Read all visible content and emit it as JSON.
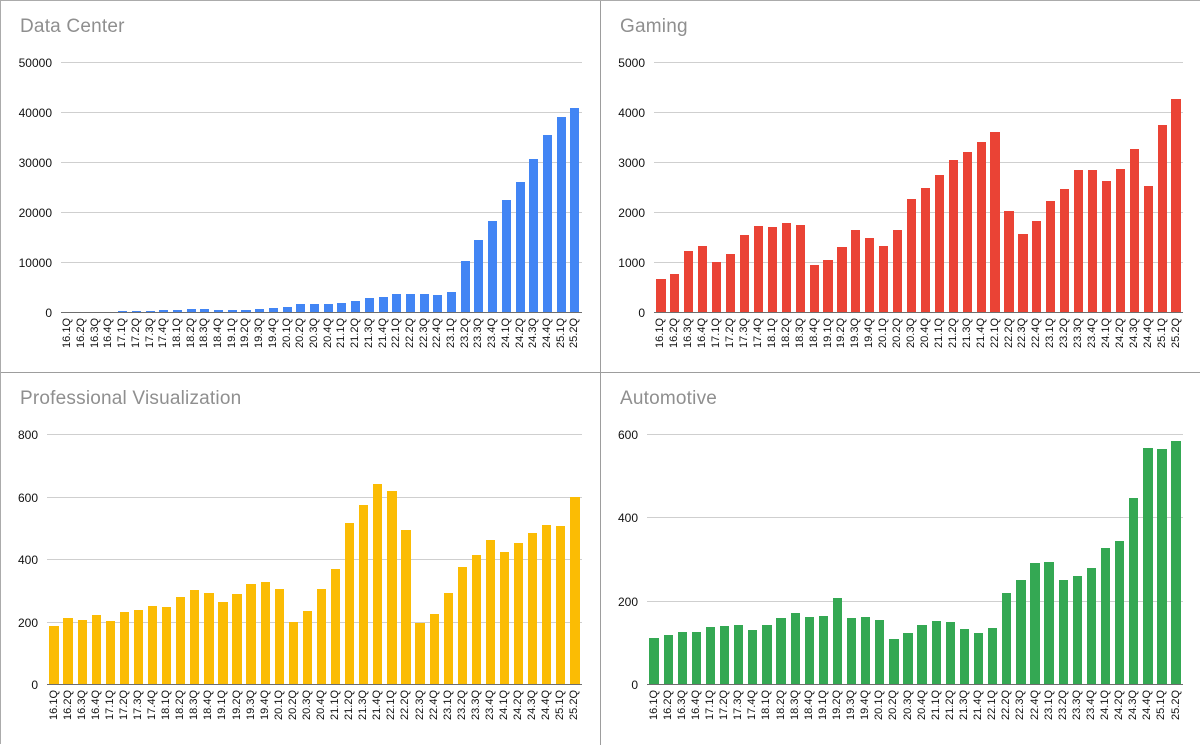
{
  "categories": [
    "16.1Q",
    "16.2Q",
    "16.3Q",
    "16.4Q",
    "17.1Q",
    "17.2Q",
    "17.3Q",
    "17.4Q",
    "18.1Q",
    "18.2Q",
    "18.3Q",
    "18.4Q",
    "19.1Q",
    "19.2Q",
    "19.3Q",
    "19.4Q",
    "20.1Q",
    "20.2Q",
    "20.3Q",
    "20.4Q",
    "21.1Q",
    "21.2Q",
    "21.3Q",
    "21.4Q",
    "22.1Q",
    "22.2Q",
    "22.3Q",
    "22.4Q",
    "23.1Q",
    "23.2Q",
    "23.3Q",
    "23.4Q",
    "24.1Q",
    "24.2Q",
    "24.3Q",
    "24.4Q",
    "25.1Q",
    "25.2Q"
  ],
  "chart_data": [
    {
      "type": "bar",
      "title": "Data Center",
      "color": "#4285f4",
      "ylim": [
        0,
        50000
      ],
      "yticks": [
        "0",
        "10000",
        "20000",
        "30000",
        "40000",
        "50000"
      ],
      "grid": true,
      "legend": "none",
      "values": [
        143,
        151,
        240,
        296,
        409,
        416,
        501,
        606,
        701,
        760,
        792,
        679,
        634,
        655,
        726,
        968,
        1141,
        1752,
        1900,
        1903,
        2048,
        2366,
        2936,
        3263,
        3750,
        3806,
        3833,
        3616,
        4284,
        10323,
        14514,
        18404,
        22563,
        26272,
        30771,
        35580,
        39112,
        41096
      ]
    },
    {
      "type": "bar",
      "title": "Gaming",
      "color": "#ea4335",
      "ylim": [
        0,
        5000
      ],
      "yticks": [
        "0",
        "1000",
        "2000",
        "3000",
        "4000",
        "5000"
      ],
      "grid": true,
      "legend": "none",
      "values": [
        687,
        781,
        1244,
        1348,
        1027,
        1186,
        1561,
        1739,
        1723,
        1805,
        1764,
        954,
        1055,
        1313,
        1659,
        1491,
        1339,
        1654,
        2271,
        2495,
        2760,
        3061,
        3221,
        3420,
        3620,
        2042,
        1574,
        1831,
        2240,
        2486,
        2856,
        2865,
        2647,
        2880,
        3279,
        2544,
        3763,
        4287
      ]
    },
    {
      "type": "bar",
      "title": "Professional Visualization",
      "color": "#fbbc04",
      "ylim": [
        0,
        800
      ],
      "yticks": [
        "0",
        "200",
        "400",
        "600",
        "800"
      ],
      "grid": true,
      "legend": "none",
      "values": [
        189,
        214,
        207,
        225,
        205,
        235,
        239,
        254,
        251,
        281,
        305,
        293,
        266,
        291,
        324,
        331,
        307,
        203,
        236,
        307,
        372,
        519,
        577,
        643,
        622,
        496,
        200,
        226,
        295,
        379,
        416,
        463,
        427,
        454,
        486,
        511,
        509,
        601
      ]
    },
    {
      "type": "bar",
      "title": "Automotive",
      "color": "#34a853",
      "ylim": [
        0,
        600
      ],
      "yticks": [
        "0",
        "200",
        "400",
        "600"
      ],
      "grid": true,
      "legend": "none",
      "values": [
        113,
        119,
        127,
        128,
        140,
        142,
        144,
        132,
        145,
        161,
        172,
        163,
        166,
        209,
        162,
        163,
        155,
        111,
        125,
        145,
        154,
        152,
        135,
        125,
        138,
        220,
        251,
        294,
        296,
        253,
        261,
        281,
        329,
        346,
        449,
        570,
        567,
        586
      ]
    }
  ]
}
